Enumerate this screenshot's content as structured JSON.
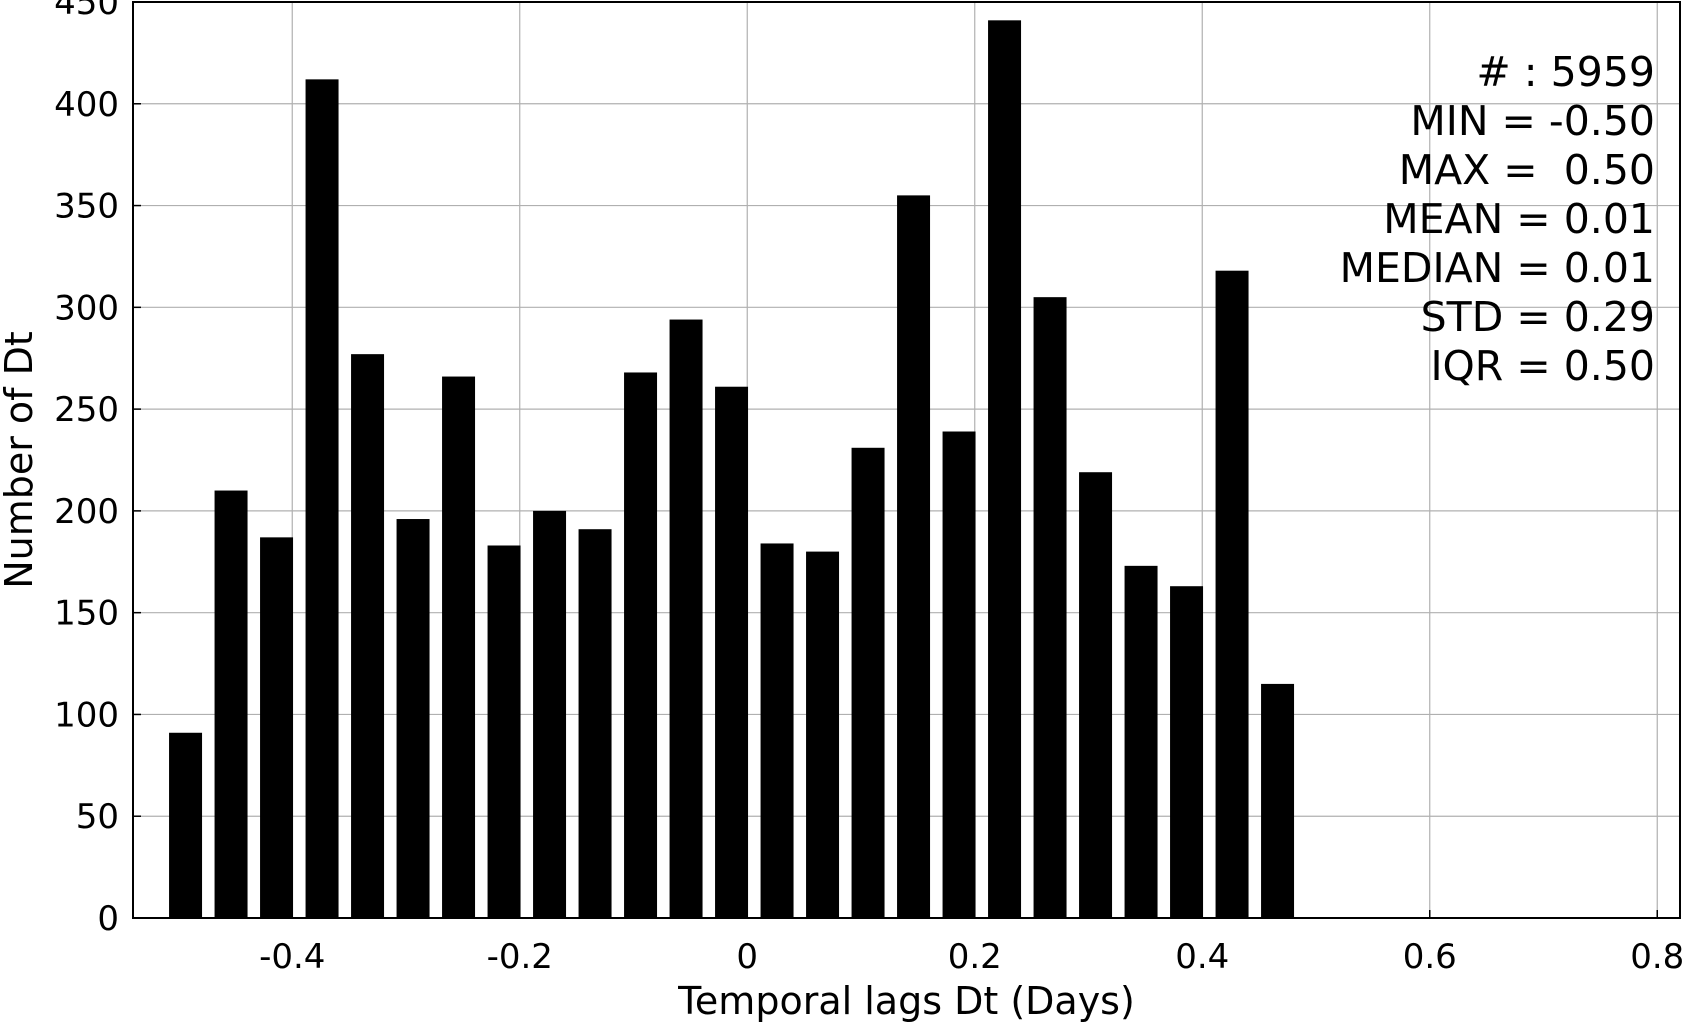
{
  "chart_data": {
    "type": "bar",
    "xlabel": "Temporal lags Dt (Days)",
    "ylabel": "Number of Dt",
    "xlim": [
      -0.54,
      0.82
    ],
    "ylim": [
      0,
      450
    ],
    "grid": true,
    "bar_color": "#000000",
    "grid_color": "#b0b0b0",
    "bar_width": 0.029,
    "x": [
      -0.4938,
      -0.4538,
      -0.4138,
      -0.3738,
      -0.3338,
      -0.2938,
      -0.2538,
      -0.2138,
      -0.1738,
      -0.1338,
      -0.0938,
      -0.0538,
      -0.0138,
      0.0262,
      0.0662,
      0.1062,
      0.1462,
      0.1862,
      0.2262,
      0.2662,
      0.3062,
      0.3462,
      0.3862,
      0.4262,
      0.4662,
      0.5062
    ],
    "values": [
      91,
      210,
      187,
      412,
      277,
      196,
      266,
      183,
      200,
      191,
      268,
      294,
      261,
      184,
      180,
      231,
      355,
      239,
      441,
      305,
      219,
      173,
      163,
      318,
      115,
      0
    ],
    "x_ticks": [
      {
        "value": -0.4,
        "label": "-0.4"
      },
      {
        "value": -0.2,
        "label": "-0.2"
      },
      {
        "value": 0,
        "label": "0"
      },
      {
        "value": 0.2,
        "label": "0.2"
      },
      {
        "value": 0.4,
        "label": "0.4"
      },
      {
        "value": 0.6,
        "label": "0.6"
      },
      {
        "value": 0.8,
        "label": "0.8"
      }
    ],
    "y_ticks": [
      {
        "value": 0,
        "label": "0"
      },
      {
        "value": 50,
        "label": "50"
      },
      {
        "value": 100,
        "label": "100"
      },
      {
        "value": 150,
        "label": "150"
      },
      {
        "value": 200,
        "label": "200"
      },
      {
        "value": 250,
        "label": "250"
      },
      {
        "value": 300,
        "label": "300"
      },
      {
        "value": 350,
        "label": "350"
      },
      {
        "value": 400,
        "label": "400"
      },
      {
        "value": 450,
        "label": "450"
      }
    ],
    "annotations": [
      "# : 5959",
      "MIN = -0.50",
      "MAX =  0.50",
      "MEAN = 0.01",
      "MEDIAN = 0.01",
      "STD = 0.29",
      "IQR = 0.50"
    ]
  }
}
